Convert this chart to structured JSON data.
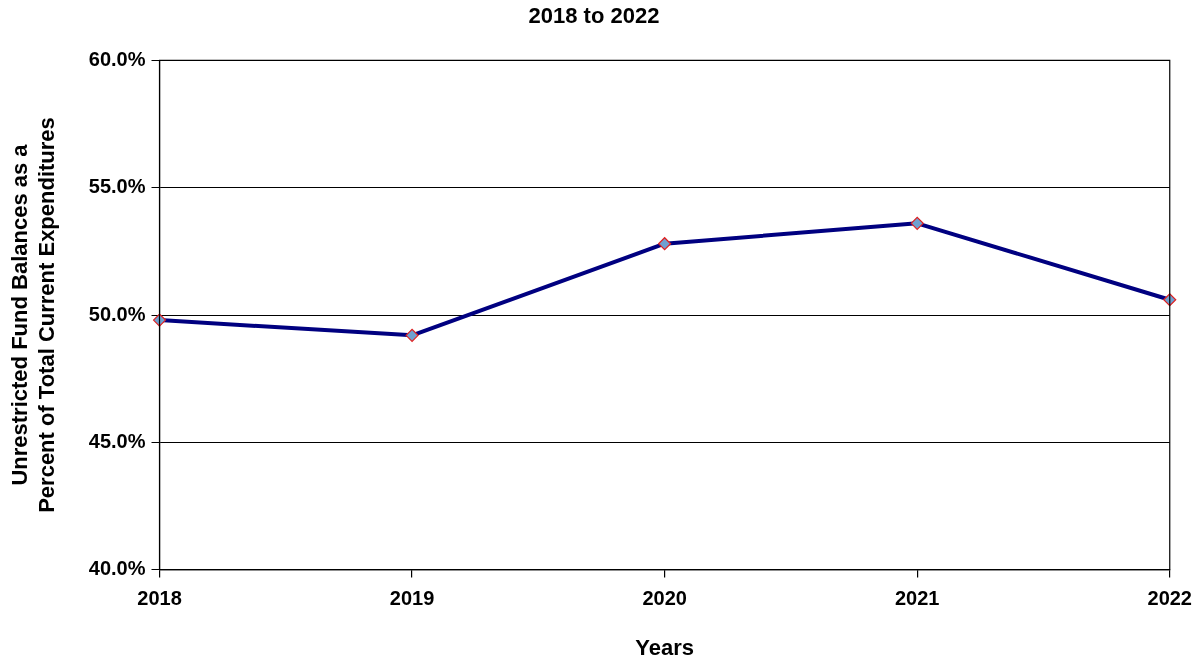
{
  "chart_data": {
    "type": "line",
    "title": "2018 to 2022",
    "xlabel": "Years",
    "ylabel": "Unrestricted Fund Balances as a\nPercent of Total Current Expenditures",
    "categories": [
      "2018",
      "2019",
      "2020",
      "2021",
      "2022"
    ],
    "series": [
      {
        "color": "#000080",
        "values": [
          49.8,
          49.2,
          52.8,
          53.6,
          50.6
        ]
      }
    ],
    "ylim": [
      40,
      60
    ],
    "yticks": [
      {
        "value": 40,
        "label": "40.0%"
      },
      {
        "value": 45,
        "label": "45.0%"
      },
      {
        "value": 50,
        "label": "50.0%"
      },
      {
        "value": 55,
        "label": "55.0%"
      },
      {
        "value": 60,
        "label": "60.0%"
      }
    ],
    "grid": "y",
    "legend": false,
    "marker": "diamond",
    "line_style": "solid"
  }
}
